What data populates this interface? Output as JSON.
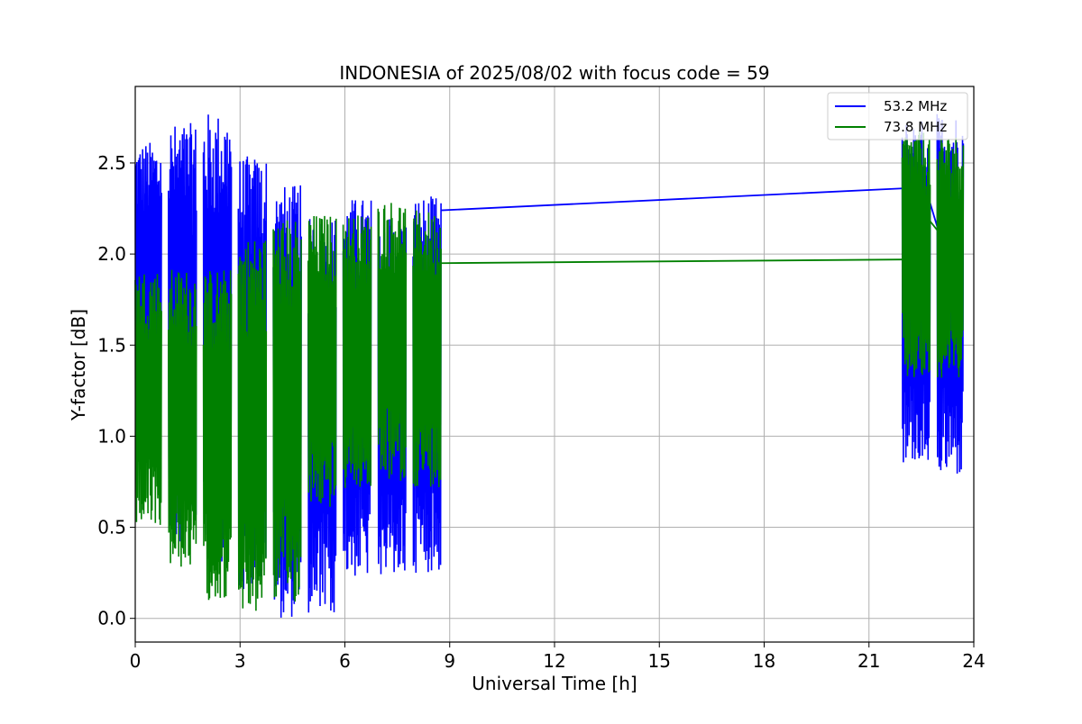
{
  "chart_data": {
    "type": "line",
    "title": "INDONESIA of 2025/08/02 with focus code = 59",
    "xlabel": "Universal Time [h]",
    "ylabel": "Y-factor [dB]",
    "xlim": [
      0,
      24
    ],
    "ylim": [
      -0.13,
      2.92
    ],
    "xticks": [
      0,
      3,
      6,
      9,
      12,
      15,
      18,
      21,
      24
    ],
    "yticks": [
      0.0,
      0.5,
      1.0,
      1.5,
      2.0,
      2.5
    ],
    "ytick_labels": [
      "0.0",
      "0.5",
      "1.0",
      "1.5",
      "2.0",
      "2.5"
    ],
    "grid": true,
    "legend_position": "top-right",
    "series": [
      {
        "name": "53.2 MHz",
        "color": "#0000ff",
        "segments": [
          {
            "start": 0.0,
            "end": 0.75,
            "low": 0.85,
            "high": 2.62
          },
          {
            "start": 0.95,
            "end": 1.75,
            "low": 0.42,
            "high": 2.72
          },
          {
            "start": 1.95,
            "end": 2.75,
            "low": 0.3,
            "high": 2.78
          },
          {
            "start": 2.95,
            "end": 3.75,
            "low": 0.15,
            "high": 2.54
          },
          {
            "start": 3.95,
            "end": 4.75,
            "low": 0.0,
            "high": 2.38
          },
          {
            "start": 4.95,
            "end": 5.75,
            "low": 0.0,
            "high": 2.2
          },
          {
            "start": 5.95,
            "end": 6.75,
            "low": 0.22,
            "high": 2.31
          },
          {
            "start": 6.95,
            "end": 7.75,
            "low": 0.22,
            "high": 2.2
          },
          {
            "start": 7.95,
            "end": 8.75,
            "low": 0.25,
            "high": 2.32
          },
          {
            "start": 21.95,
            "end": 22.75,
            "low": 0.85,
            "high": 2.74
          },
          {
            "start": 22.95,
            "end": 23.7,
            "low": 0.77,
            "high": 2.78
          }
        ],
        "connectors": [
          [
            8.75,
            2.24,
            21.95,
            2.36
          ],
          [
            22.75,
            2.28,
            23.0,
            2.12
          ]
        ]
      },
      {
        "name": "73.8 MHz",
        "color": "#008000",
        "segments": [
          {
            "start": 0.0,
            "end": 0.75,
            "low": 0.5,
            "high": 1.92
          },
          {
            "start": 0.95,
            "end": 1.75,
            "low": 0.27,
            "high": 1.92
          },
          {
            "start": 1.95,
            "end": 2.75,
            "low": 0.1,
            "high": 1.92
          },
          {
            "start": 2.95,
            "end": 3.75,
            "low": 0.02,
            "high": 2.1
          },
          {
            "start": 3.95,
            "end": 4.75,
            "low": 0.08,
            "high": 2.2
          },
          {
            "start": 4.95,
            "end": 5.75,
            "low": 0.6,
            "high": 2.22
          },
          {
            "start": 5.95,
            "end": 6.75,
            "low": 0.7,
            "high": 2.22
          },
          {
            "start": 6.95,
            "end": 7.75,
            "low": 0.75,
            "high": 2.3
          },
          {
            "start": 7.95,
            "end": 8.75,
            "low": 0.72,
            "high": 2.24
          },
          {
            "start": 21.95,
            "end": 22.75,
            "low": 1.3,
            "high": 2.68
          },
          {
            "start": 22.95,
            "end": 23.7,
            "low": 1.32,
            "high": 2.66
          }
        ],
        "connectors": [
          [
            8.75,
            1.95,
            21.95,
            1.97
          ],
          [
            22.75,
            2.18,
            23.0,
            2.12
          ]
        ]
      }
    ]
  }
}
